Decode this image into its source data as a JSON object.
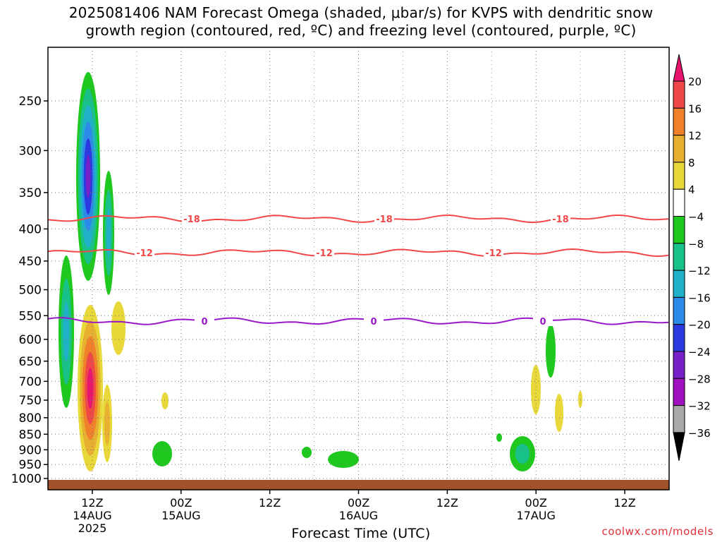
{
  "title": {
    "line1": "2025081406 NAM Forecast Omega (shaded, μbar/s) for KVPS with dendritic snow",
    "line2": "growth region (contoured, red, ºC) and freezing level (contoured, purple, ºC)"
  },
  "credit": "coolwx.com/models",
  "chart_data": {
    "type": "time-height cross section",
    "xlabel": "Forecast Time (UTC)",
    "x_ticks": [
      {
        "label": "12Z",
        "sub": "14AUG",
        "sub2": "2025",
        "hour": 6
      },
      {
        "label": "00Z",
        "sub": "15AUG",
        "sub2": "",
        "hour": 18
      },
      {
        "label": "12Z",
        "sub": "",
        "sub2": "",
        "hour": 30
      },
      {
        "label": "00Z",
        "sub": "16AUG",
        "sub2": "",
        "hour": 42
      },
      {
        "label": "12Z",
        "sub": "",
        "sub2": "",
        "hour": 54
      },
      {
        "label": "00Z",
        "sub": "17AUG",
        "sub2": "",
        "hour": 66
      },
      {
        "label": "12Z",
        "sub": "",
        "sub2": "",
        "hour": 78
      }
    ],
    "xlim_hours": [
      0,
      84
    ],
    "y_ticks_hpa": [
      250,
      300,
      350,
      400,
      450,
      500,
      550,
      600,
      650,
      700,
      750,
      800,
      850,
      900,
      950,
      1000
    ],
    "ylim_hpa": [
      200,
      1010
    ],
    "ylog": true,
    "grid": "dotted",
    "colorbar": {
      "labels": [
        "20",
        "16",
        "12",
        "8",
        "4",
        "−4",
        "−8",
        "−12",
        "−16",
        "−20",
        "−24",
        "−28",
        "−32",
        "−36"
      ],
      "colors": [
        "#e8156e",
        "#f04848",
        "#f0802a",
        "#e8b030",
        "#e8d83a",
        "#ffffff",
        "#1ec81e",
        "#18c08a",
        "#20b0c8",
        "#2c8ae8",
        "#2a3ae0",
        "#7820c8",
        "#a010c0",
        "#a8a8a8",
        "#000000"
      ]
    },
    "contours": [
      {
        "label": "-18",
        "color": "#f04848",
        "level_c": -18,
        "hpa_approx": 385
      },
      {
        "label": "-12",
        "color": "#f04848",
        "level_c": -12,
        "hpa_approx": 440
      },
      {
        "label": "0",
        "color": "#9a18c8",
        "level_c": 0,
        "hpa_approx": 565
      }
    ],
    "ground_color": "#a0522d"
  }
}
